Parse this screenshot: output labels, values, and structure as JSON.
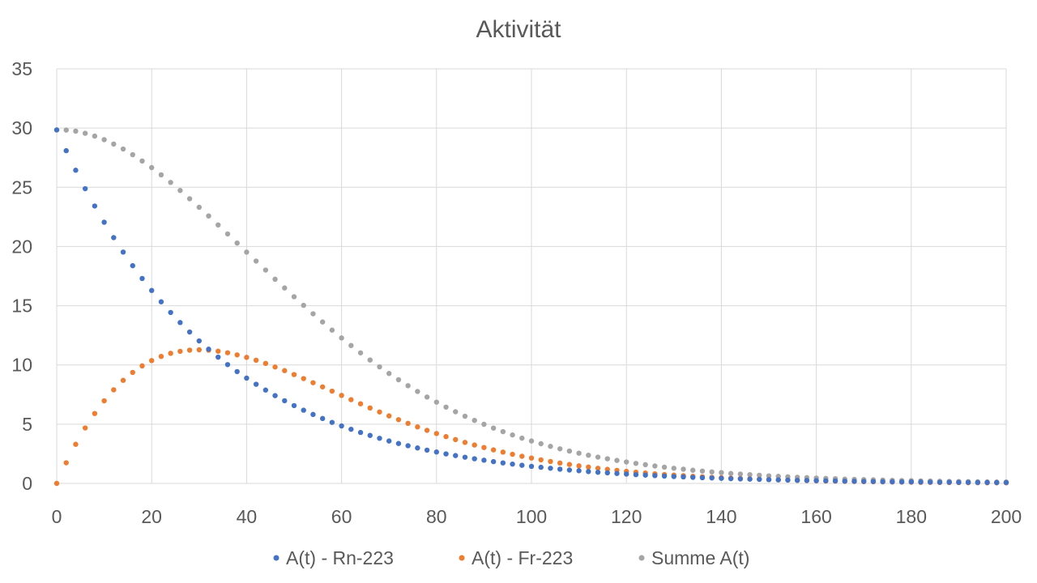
{
  "chart_data": {
    "type": "scatter",
    "title": "Aktivität",
    "xlabel": "",
    "ylabel": "",
    "xlim": [
      0,
      200
    ],
    "ylim": [
      0,
      35
    ],
    "x_ticks": [
      0,
      20,
      40,
      60,
      80,
      100,
      120,
      140,
      160,
      180,
      200
    ],
    "y_ticks": [
      0,
      5,
      10,
      15,
      20,
      25,
      30,
      35
    ],
    "grid": true,
    "legend_position": "bottom",
    "x": [
      0,
      2,
      4,
      6,
      8,
      10,
      12,
      14,
      16,
      18,
      20,
      22,
      24,
      26,
      28,
      30,
      32,
      34,
      36,
      38,
      40,
      42,
      44,
      46,
      48,
      50,
      52,
      54,
      56,
      58,
      60,
      62,
      64,
      66,
      68,
      70,
      72,
      74,
      76,
      78,
      80,
      82,
      84,
      86,
      88,
      90,
      92,
      94,
      96,
      98,
      100,
      102,
      104,
      106,
      108,
      110,
      112,
      114,
      116,
      118,
      120,
      122,
      124,
      126,
      128,
      130,
      132,
      134,
      136,
      138,
      140,
      142,
      144,
      146,
      148,
      150,
      152,
      154,
      156,
      158,
      160,
      162,
      164,
      166,
      168,
      170,
      172,
      174,
      176,
      178,
      180,
      182,
      184,
      186,
      188,
      190,
      192,
      194,
      196,
      198,
      200
    ],
    "series": [
      {
        "name": "A(t) - Rn-223",
        "color": "#4472c4",
        "values": [
          29.84,
          28.09,
          26.44,
          24.88,
          23.42,
          22.05,
          20.75,
          19.53,
          18.38,
          17.3,
          16.29,
          15.33,
          14.43,
          13.58,
          12.78,
          12.03,
          11.33,
          10.66,
          10.03,
          9.44,
          8.89,
          8.37,
          7.88,
          7.41,
          6.98,
          6.57,
          6.18,
          5.82,
          5.48,
          5.15,
          4.85,
          4.57,
          4.3,
          4.05,
          3.81,
          3.58,
          3.37,
          3.18,
          2.99,
          2.81,
          2.65,
          2.49,
          2.35,
          2.21,
          2.08,
          1.96,
          1.84,
          1.73,
          1.63,
          1.53,
          1.44,
          1.36,
          1.28,
          1.2,
          1.13,
          1.07,
          1.0,
          0.94,
          0.89,
          0.84,
          0.79,
          0.74,
          0.7,
          0.66,
          0.62,
          0.58,
          0.55,
          0.51,
          0.48,
          0.46,
          0.43,
          0.4,
          0.38,
          0.36,
          0.34,
          0.32,
          0.3,
          0.28,
          0.26,
          0.25,
          0.23,
          0.22,
          0.21,
          0.19,
          0.18,
          0.17,
          0.16,
          0.15,
          0.14,
          0.13,
          0.13,
          0.12,
          0.11,
          0.1,
          0.1,
          0.09,
          0.09,
          0.08,
          0.08,
          0.07,
          0.07
        ]
      },
      {
        "name": "A(t) - Fr-223",
        "color": "#ed7d31",
        "values": [
          0,
          1.74,
          3.3,
          4.68,
          5.9,
          6.97,
          7.9,
          8.7,
          9.37,
          9.92,
          10.37,
          10.72,
          10.98,
          11.15,
          11.25,
          11.28,
          11.25,
          11.16,
          11.03,
          10.85,
          10.64,
          10.4,
          10.13,
          9.83,
          9.52,
          9.19,
          8.85,
          8.5,
          8.15,
          7.79,
          7.43,
          7.07,
          6.72,
          6.37,
          6.03,
          5.7,
          5.38,
          5.07,
          4.77,
          4.48,
          4.21,
          3.95,
          3.7,
          3.46,
          3.24,
          3.03,
          2.83,
          2.64,
          2.46,
          2.29,
          2.14,
          1.99,
          1.85,
          1.72,
          1.6,
          1.48,
          1.38,
          1.28,
          1.19,
          1.1,
          1.02,
          0.95,
          0.88,
          0.81,
          0.75,
          0.7,
          0.65,
          0.6,
          0.56,
          0.51,
          0.48,
          0.44,
          0.41,
          0.38,
          0.35,
          0.32,
          0.3,
          0.28,
          0.26,
          0.24,
          0.22,
          0.2,
          0.19,
          0.17,
          0.16,
          0.15,
          0.14,
          0.13,
          0.12,
          0.11,
          0.1,
          0.09,
          0.09,
          0.08,
          0.07,
          0.07,
          0.06,
          0.06,
          0.05,
          0.05,
          0.05
        ]
      },
      {
        "name": "Summe A(t)",
        "color": "#a5a5a5",
        "values": [
          29.84,
          29.83,
          29.74,
          29.56,
          29.32,
          29.02,
          28.65,
          28.23,
          27.75,
          27.22,
          26.66,
          26.05,
          25.41,
          24.73,
          24.03,
          23.31,
          22.58,
          21.82,
          21.06,
          20.29,
          19.53,
          18.77,
          18.01,
          17.24,
          16.5,
          15.76,
          15.03,
          14.32,
          13.63,
          12.94,
          12.28,
          11.64,
          11.02,
          10.42,
          9.84,
          9.28,
          8.75,
          8.25,
          7.76,
          7.29,
          6.86,
          6.44,
          6.05,
          5.67,
          5.32,
          4.99,
          4.67,
          4.37,
          4.09,
          3.82,
          3.58,
          3.35,
          3.13,
          2.92,
          2.73,
          2.55,
          2.38,
          2.22,
          2.08,
          1.94,
          1.81,
          1.69,
          1.58,
          1.47,
          1.37,
          1.28,
          1.2,
          1.11,
          1.04,
          0.97,
          0.91,
          0.84,
          0.79,
          0.74,
          0.69,
          0.64,
          0.6,
          0.56,
          0.52,
          0.49,
          0.45,
          0.42,
          0.4,
          0.36,
          0.34,
          0.32,
          0.3,
          0.28,
          0.26,
          0.24,
          0.23,
          0.21,
          0.2,
          0.18,
          0.17,
          0.16,
          0.15,
          0.14,
          0.13,
          0.12,
          0.12
        ]
      }
    ]
  }
}
